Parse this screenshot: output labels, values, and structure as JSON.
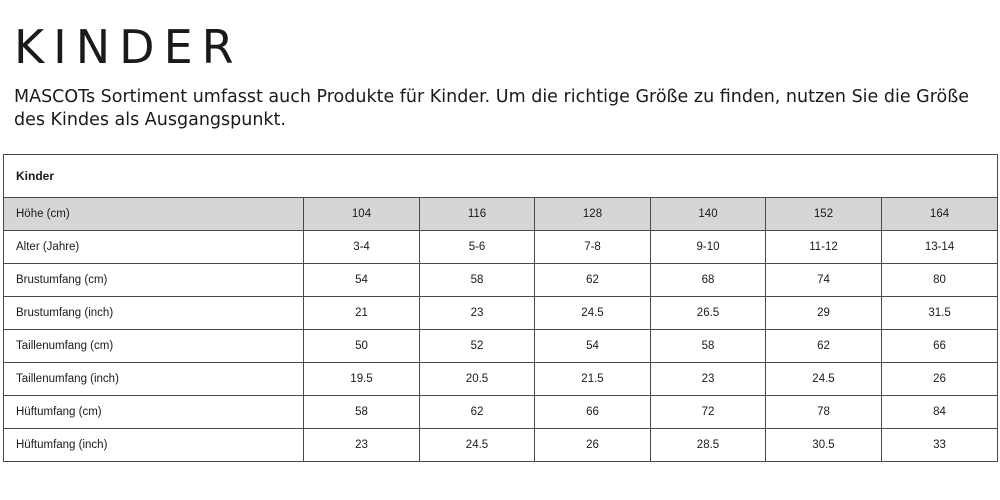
{
  "page": {
    "title": "KINDER",
    "intro": "MASCOTs Sortiment umfasst auch Produkte für Kinder. Um die richtige Größe zu finden, nutzen Sie die Größe des Kindes als Ausgangspunkt."
  },
  "table": {
    "caption": "Kinder",
    "header": {
      "label": "Höhe (cm)",
      "values": [
        "104",
        "116",
        "128",
        "140",
        "152",
        "164"
      ]
    },
    "rows": [
      {
        "label": "Alter (Jahre)",
        "values": [
          "3-4",
          "5-6",
          "7-8",
          "9-10",
          "11-12",
          "13-14"
        ]
      },
      {
        "label": "Brustumfang (cm)",
        "values": [
          "54",
          "58",
          "62",
          "68",
          "74",
          "80"
        ]
      },
      {
        "label": "Brustumfang (inch)",
        "values": [
          "21",
          "23",
          "24.5",
          "26.5",
          "29",
          "31.5"
        ]
      },
      {
        "label": "Taillenumfang (cm)",
        "values": [
          "50",
          "52",
          "54",
          "58",
          "62",
          "66"
        ]
      },
      {
        "label": "Taillenumfang (inch)",
        "values": [
          "19.5",
          "20.5",
          "21.5",
          "23",
          "24.5",
          "26"
        ]
      },
      {
        "label": "Hüftumfang (cm)",
        "values": [
          "58",
          "62",
          "66",
          "72",
          "78",
          "84"
        ]
      },
      {
        "label": "Hüftumfang (inch)",
        "values": [
          "23",
          "24.5",
          "26",
          "28.5",
          "30.5",
          "33"
        ]
      }
    ]
  }
}
